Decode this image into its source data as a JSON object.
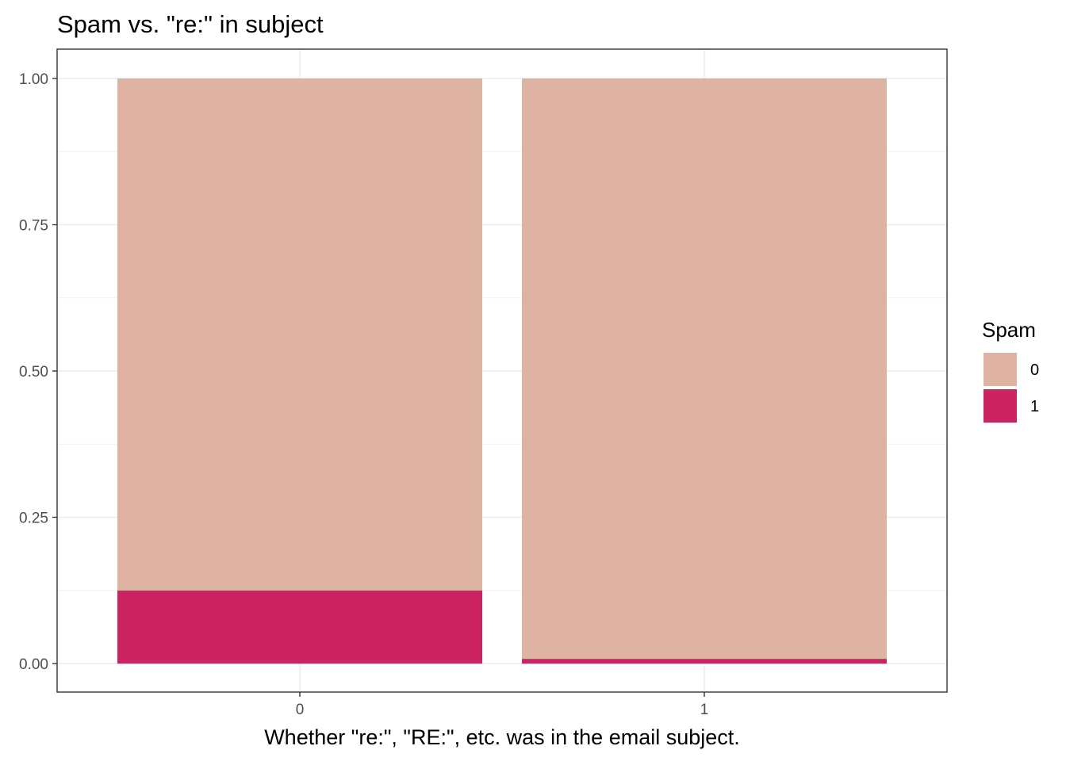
{
  "chart_data": {
    "type": "bar",
    "stacked": true,
    "title": "Spam vs. \"re:\" in subject",
    "xlabel": "Whether \"re:\", \"RE:\", etc. was in the email subject.",
    "ylabel": "",
    "categories": [
      "0",
      "1"
    ],
    "ylim": [
      0,
      1
    ],
    "yticks": [
      0.0,
      0.25,
      0.5,
      0.75,
      1.0
    ],
    "ytick_labels": [
      "0.00",
      "0.25",
      "0.50",
      "0.75",
      "1.00"
    ],
    "grid": true,
    "legend": {
      "title": "Spam",
      "position": "right"
    },
    "series": [
      {
        "name": "0",
        "color": "#DEB3A1",
        "values": [
          0.875,
          0.992
        ]
      },
      {
        "name": "1",
        "color": "#CB2461",
        "values": [
          0.125,
          0.008
        ]
      }
    ]
  }
}
